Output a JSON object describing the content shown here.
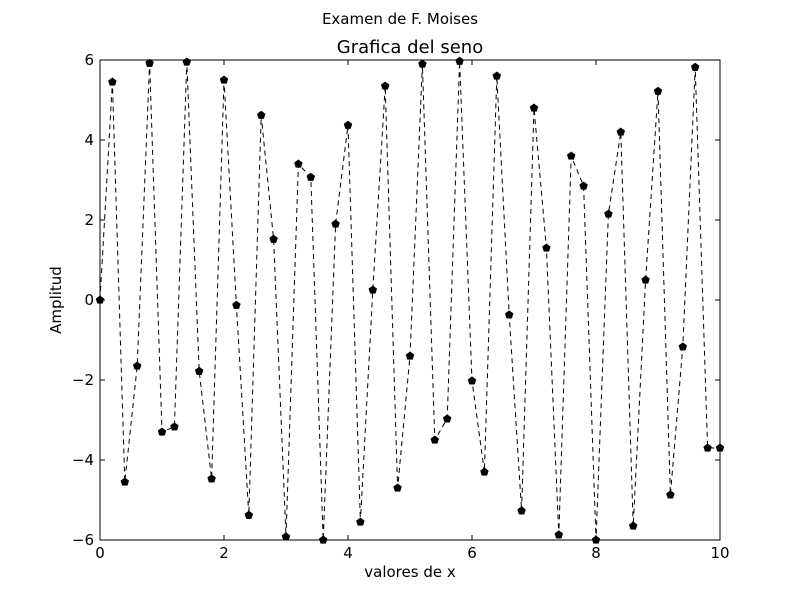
{
  "figure": {
    "suptitle": "Examen de F. Moises"
  },
  "chart_data": {
    "type": "line",
    "title": "Grafica del seno",
    "xlabel": "valores de x",
    "ylabel": "Amplitud",
    "xlim": [
      0,
      10
    ],
    "ylim": [
      -6,
      6
    ],
    "xticks": [
      0,
      2,
      4,
      6,
      8,
      10
    ],
    "xtick_labels": [
      "0",
      "2",
      "4",
      "6",
      "8",
      "10"
    ],
    "yticks": [
      -6,
      -4,
      -2,
      0,
      2,
      4,
      6
    ],
    "ytick_labels": [
      "−6",
      "−4",
      "−2",
      "0",
      "2",
      "4",
      "6"
    ],
    "grid": false,
    "legend": false,
    "series": [
      {
        "line_style": "dashed",
        "marker": "pentagon",
        "color": "#000000",
        "x": [
          0,
          0.2,
          0.4,
          0.6,
          0.8,
          1.0,
          1.2,
          1.4,
          1.6,
          1.8,
          2.0,
          2.2,
          2.4,
          2.6,
          2.8,
          3.0,
          3.2,
          3.4,
          3.6,
          3.8,
          4.0,
          4.2,
          4.4,
          4.6,
          4.8,
          5.0,
          5.2,
          5.4,
          5.6,
          5.8,
          6.0,
          6.2,
          6.4,
          6.6,
          6.8,
          7.0,
          7.2,
          7.4,
          7.6,
          7.8,
          8.0,
          8.2,
          8.4,
          8.6,
          8.8,
          9.0,
          9.2,
          9.4,
          9.6,
          9.8,
          10.0
        ],
        "y": [
          0,
          5.45,
          -4.55,
          -1.65,
          5.92,
          -3.3,
          -3.17,
          5.95,
          -1.78,
          -4.47,
          5.5,
          -0.13,
          -5.38,
          4.62,
          1.52,
          -5.92,
          3.4,
          3.07,
          -6.0,
          1.9,
          4.37,
          -5.55,
          0.25,
          5.35,
          -4.7,
          -1.4,
          5.9,
          -3.5,
          -2.97,
          5.97,
          -2.02,
          -4.3,
          5.6,
          -0.37,
          -5.27,
          4.8,
          1.3,
          -5.87,
          3.6,
          2.85,
          -6.0,
          2.15,
          4.2,
          -5.65,
          0.5,
          5.22,
          -4.87,
          -1.17,
          5.82,
          -3.7,
          -3.7
        ]
      }
    ]
  }
}
